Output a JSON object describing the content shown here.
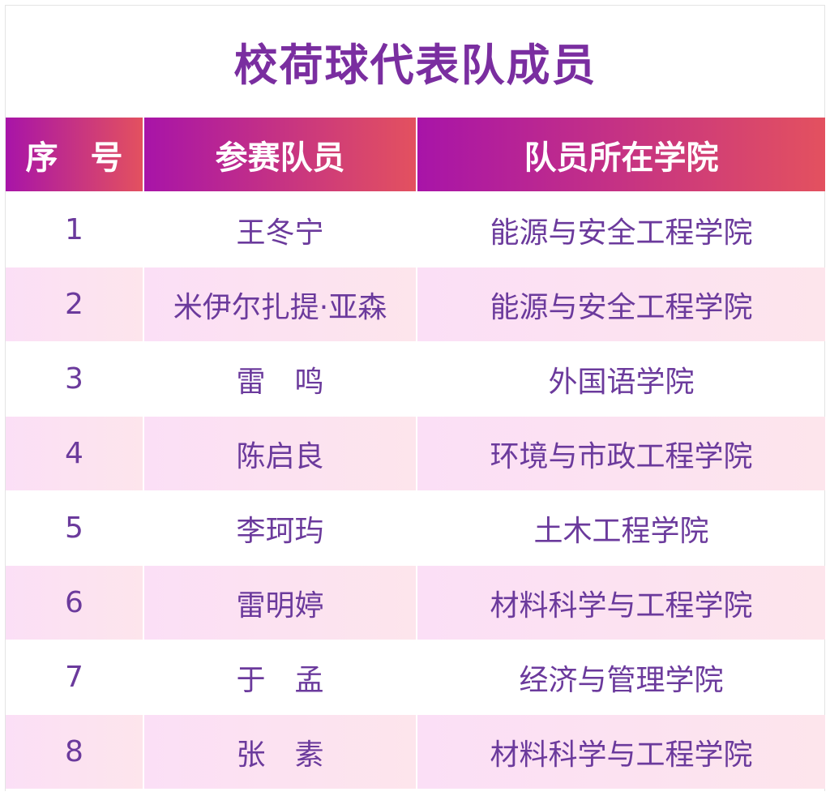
{
  "title": "校荷球代表队成员",
  "headers": [
    "序　号",
    "参赛队员",
    "队员所在学院"
  ],
  "rows": [
    {
      "no": "1",
      "name": "王冬宁",
      "college": "能源与安全工程学院"
    },
    {
      "no": "2",
      "name": "米伊尔扎提·亚森",
      "college": "能源与安全工程学院"
    },
    {
      "no": "3",
      "name": "雷　鸣",
      "college": "外国语学院"
    },
    {
      "no": "4",
      "name": "陈启良",
      "college": "环境与市政工程学院"
    },
    {
      "no": "5",
      "name": "李珂玙",
      "college": "土木工程学院"
    },
    {
      "no": "6",
      "name": "雷明婷",
      "college": "材料科学与工程学院"
    },
    {
      "no": "7",
      "name": "于　孟",
      "college": "经济与管理学院"
    },
    {
      "no": "8",
      "name": "张　素",
      "college": "材料科学与工程学院"
    }
  ],
  "colors": {
    "header_start": "#a814a8",
    "header_end": "#e3515f",
    "text": "#6b3a9c",
    "title": "#7a2ea0",
    "stripe": "#fbdff6"
  }
}
